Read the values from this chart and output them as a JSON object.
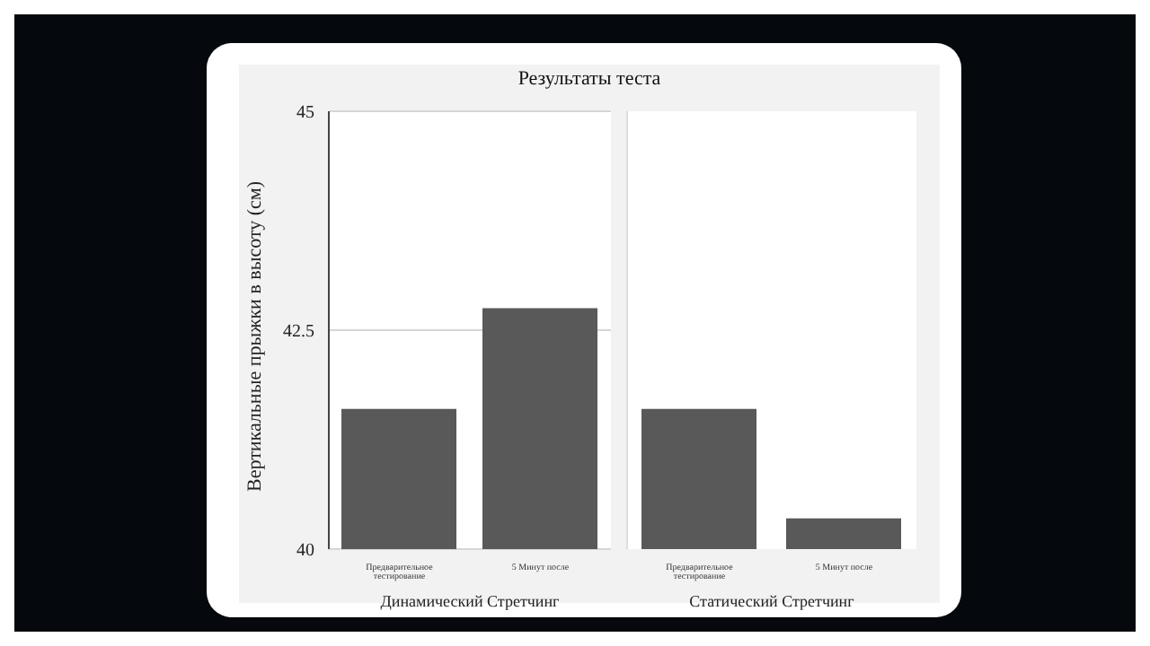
{
  "chart_data": [
    {
      "type": "bar",
      "title": "Результаты теста",
      "ylabel": "Вертикальные прыжки в высоту (см)",
      "xlabel": "Динамический Стретчинг",
      "categories": [
        "Предварительное тестирование",
        "5 Минут после"
      ],
      "values": [
        41.6,
        42.75
      ],
      "color": "#595959",
      "ylim": [
        40,
        45
      ],
      "yticks": [
        40,
        42.5,
        45
      ],
      "grid": "y"
    },
    {
      "type": "bar",
      "xlabel": "Статический Стретчинг",
      "categories": [
        "Предварительное тестирование",
        "5 Минут после"
      ],
      "values": [
        41.6,
        40.35
      ],
      "color": "#595959",
      "ylim": [
        40,
        45
      ],
      "yticks": [
        40,
        42.5,
        45
      ],
      "tick_labels": "x"
    }
  ]
}
